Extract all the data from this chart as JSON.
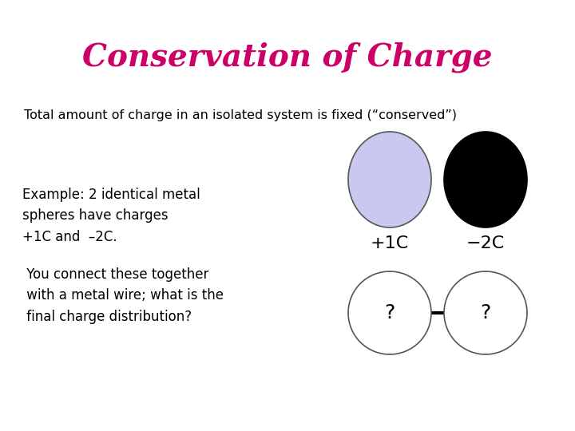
{
  "title": "Conservation of Charge",
  "title_color": "#cc0066",
  "subtitle": "Total amount of charge in an isolated system is fixed (“conserved”)",
  "body_text1": "Example: 2 identical metal\nspheres have charges\n+1C and  –2C.",
  "body_text2": " You connect these together\n with a metal wire; what is the\n final charge distribution?",
  "circle1_color": "#c8c8f0",
  "circle1_edge": "#555555",
  "circle1_label": "+1C",
  "circle2_color": "#000000",
  "circle2_edge": "#000000",
  "circle2_label": "−2C",
  "circle3_color": "#ffffff",
  "circle3_edge": "#555555",
  "circle3_label": "?",
  "circle4_color": "#ffffff",
  "circle4_edge": "#555555",
  "circle4_label": "?",
  "bg_color": "#ffffff",
  "text_color": "#000000",
  "font_size_title": 28,
  "font_size_body": 11.5,
  "font_size_label": 13,
  "font_size_qmark": 14
}
